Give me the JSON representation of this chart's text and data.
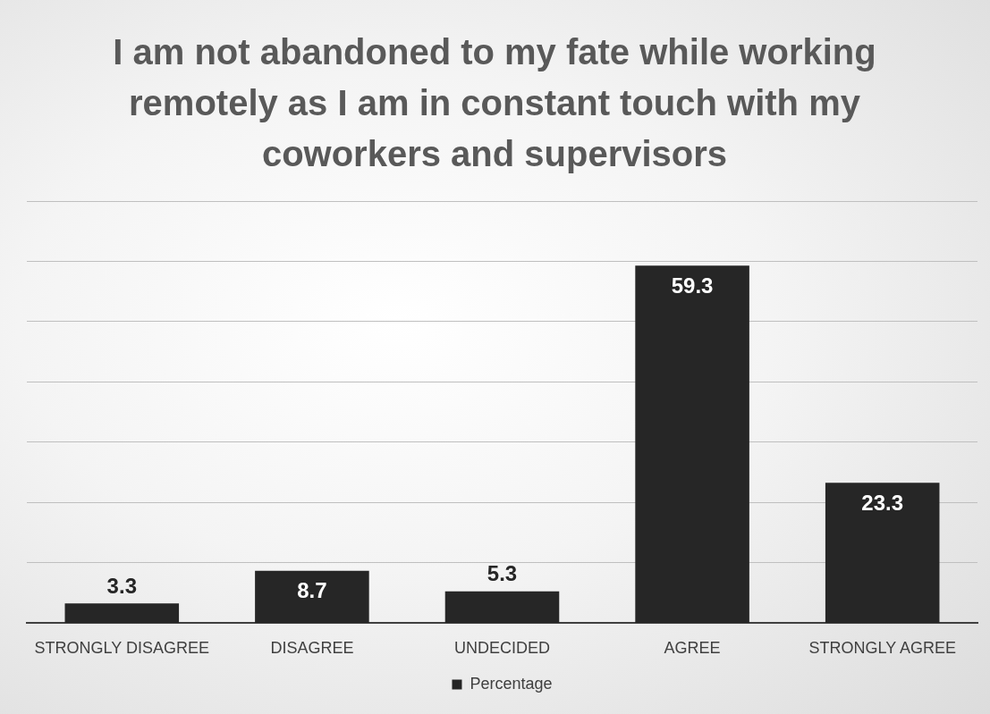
{
  "chart_data": {
    "type": "bar",
    "title": "I am not abandoned to my fate while working remotely as I am in constant touch with my coworkers and supervisors",
    "categories": [
      "STRONGLY DISAGREE",
      "DISAGREE",
      "UNDECIDED",
      "AGREE",
      "STRONGLY AGREE"
    ],
    "series": [
      {
        "name": "Percentage",
        "color": "#262626",
        "values": [
          3.3,
          8.7,
          5.3,
          59.3,
          23.3
        ]
      }
    ],
    "ylim": [
      0,
      70
    ],
    "yticks": [
      {
        "value": 0,
        "label": null
      },
      {
        "value": 10,
        "label": null
      },
      {
        "value": 20,
        "label": null
      },
      {
        "value": 30,
        "label": null
      },
      {
        "value": 40,
        "label": null
      },
      {
        "value": 50,
        "label": null
      },
      {
        "value": 60,
        "label": null
      },
      {
        "value": 70,
        "label": null
      }
    ],
    "tick_labels": "x",
    "grid": "y",
    "legend": "bottom",
    "data_labels": true
  }
}
